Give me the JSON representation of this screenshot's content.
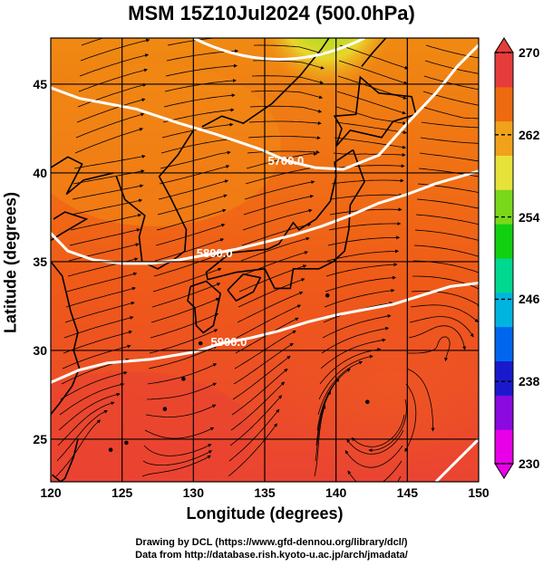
{
  "title": "MSM 15Z10Jul2024 (500.0hPa)",
  "x_axis": {
    "label": "Longitude (degrees)",
    "ticks": [
      "120",
      "125",
      "130",
      "135",
      "140",
      "145",
      "150"
    ],
    "range": [
      120,
      150
    ]
  },
  "y_axis": {
    "label": "Latitude  (degrees)",
    "ticks": [
      "25",
      "30",
      "35",
      "40",
      "45"
    ],
    "range": [
      22.6,
      47.6
    ]
  },
  "colorbar": {
    "ticks": [
      "270",
      "262",
      "254",
      "246",
      "238",
      "230"
    ],
    "range": [
      230,
      270
    ],
    "colors": [
      "#e800e8",
      "#8a0adf",
      "#1a1acc",
      "#0066ee",
      "#00b4e0",
      "#00d890",
      "#10d010",
      "#7ad81a",
      "#e6e23a",
      "#f1a21a",
      "#ee6a10",
      "#e63c3c"
    ]
  },
  "contours": [
    {
      "label": "5700.0"
    },
    {
      "label": "5800.0"
    },
    {
      "label": "5900.0"
    }
  ],
  "credits": {
    "line1": "Drawing by DCL (https://www.gfd-dennou.org/library/dcl/)",
    "line2": "Data from http://database.rish.kyoto-u.ac.jp/arch/jmadata/"
  }
}
